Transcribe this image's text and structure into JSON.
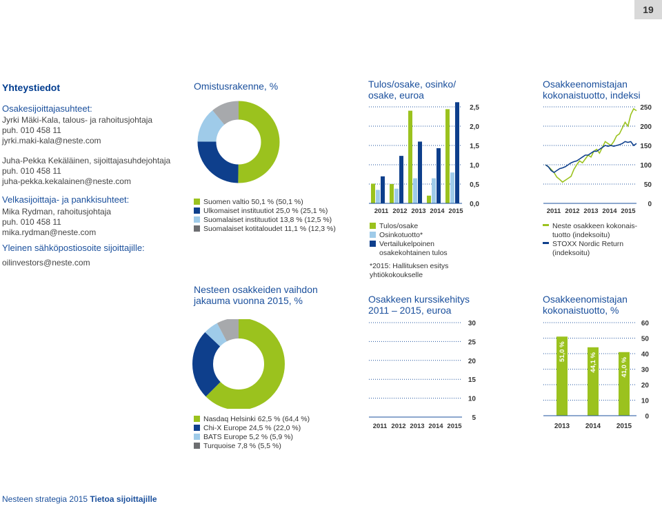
{
  "page_number": "19",
  "footer": {
    "left": "Nesteen strategia 2015",
    "right": "Tietoa sijoittajille"
  },
  "colors": {
    "green": "#9bc21e",
    "navy": "#0e3f8c",
    "lightblue": "#9fcbe9",
    "gray": "#a7a9ac",
    "text_blue": "#1a4f9c"
  },
  "contacts": {
    "title": "Yhteystiedot",
    "shareholder_heading": "Osakesijoittajasuhteet:",
    "shareholder_lines": [
      "Jyrki Mäki-Kala, talous- ja rahoitusjohtaja",
      "puh. 010 458 11",
      "jyrki.maki-kala@neste.com"
    ],
    "relations_lines": [
      "Juha-Pekka Kekäläinen, sijoittajasuhdejohtaja",
      "puh. 010 458 11",
      "juha-pekka.kekalainen@neste.com"
    ],
    "debt_heading": "Velkasijoittaja- ja pankkisuhteet:",
    "debt_lines": [
      "Mika Rydman, rahoitusjohtaja",
      "puh. 010 458 11",
      "mika.rydman@neste.com"
    ],
    "general_heading": "Yleinen sähköpostiosoite sijoittajille:",
    "general_email": "oilinvestors@neste.com"
  },
  "ownership": {
    "title": "Omistusrakenne, %",
    "legend": [
      "Suomen valtio 50,1 % (50,1 %)",
      "Ulkomaiset instituutiot 25,0 % (25,1 %)",
      "Suomalaiset instituutiot 13,8 % (12,5 %)",
      "Suomalaiset kotitaloudet 11,1 % (12,3 %)"
    ]
  },
  "trading": {
    "title_lines": [
      "Nesteen osakkeiden vaihdon",
      "jakauma vuonna 2015, %"
    ],
    "legend": [
      "Nasdaq Helsinki 62,5 % (64,4 %)",
      "Chi-X Europe 24,5 % (22,0 %)",
      "BATS Europe 5,2 % (5,9 %)",
      "Turquoise 7,8 % (5,5 %)"
    ]
  },
  "eps": {
    "title_lines": [
      "Tulos/osake, osinko/",
      "osake, euroa"
    ],
    "legend": [
      "Tulos/osake",
      "Osinkotuotto*",
      "Vertailukelpoinen",
      "osakekohtainen tulos"
    ],
    "note_lines": [
      "*2015: Hallituksen esitys",
      "yhtiökokoukselle"
    ]
  },
  "tsr_index": {
    "title_lines": [
      "Osakkeenomistajan",
      "kokonaistuotto, indeksi"
    ],
    "legend": [
      "Neste osakkeen kokonais-",
      "tuotto (indeksoitu)",
      "STOXX Nordic Return",
      "(indeksoitu)"
    ]
  },
  "price": {
    "title_lines": [
      "Osakkeen kurssikehitys",
      "2011 – 2015, euroa"
    ]
  },
  "tsr_pct": {
    "title_lines": [
      "Osakkeenomistajan",
      "kokonaistuotto, %"
    ]
  },
  "chart_data": [
    {
      "id": "ownership",
      "type": "pie",
      "title": "Omistusrakenne, %",
      "categories": [
        "Suomen valtio",
        "Ulkomaiset instituutiot",
        "Suomalaiset instituutiot",
        "Suomalaiset kotitaloudet"
      ],
      "values": [
        50.1,
        25.0,
        13.8,
        11.1
      ]
    },
    {
      "id": "trading",
      "type": "pie",
      "title": "Nesteen osakkeiden vaihdon jakauma vuonna 2015, %",
      "categories": [
        "Nasdaq Helsinki",
        "Chi-X Europe",
        "BATS Europe",
        "Turquoise"
      ],
      "values": [
        62.5,
        24.5,
        5.2,
        7.8
      ]
    },
    {
      "id": "eps",
      "type": "bar",
      "title": "Tulos/osake, osinko/osake, euroa",
      "categories": [
        "2011",
        "2012",
        "2013",
        "2014",
        "2015"
      ],
      "series": [
        {
          "name": "Tulos/osake",
          "values": [
            0.51,
            0.5,
            2.4,
            0.2,
            2.44
          ]
        },
        {
          "name": "Osinkotuotto*",
          "values": [
            0.35,
            0.38,
            0.65,
            0.65,
            0.8
          ]
        },
        {
          "name": "Vertailukelpoinen osakekohtainen tulos",
          "values": [
            0.7,
            1.23,
            1.6,
            1.43,
            2.62
          ]
        }
      ],
      "yticks": [
        "0,0",
        "0,5",
        "1,0",
        "1,5",
        "2,0",
        "2,5"
      ],
      "ylim": [
        0,
        2.5
      ]
    },
    {
      "id": "tsr_index",
      "type": "line",
      "title": "Osakkeenomistajan kokonaistuotto, indeksi",
      "xticks": [
        "2011",
        "2012",
        "2013",
        "2014",
        "2015"
      ],
      "yticks": [
        "0",
        "50",
        "100",
        "150",
        "200",
        "250"
      ],
      "ylim": [
        0,
        250
      ],
      "series": [
        {
          "name": "Neste osakkeen kokonaistuotto (indeksoitu)",
          "values": [
            100,
            95,
            88,
            80,
            68,
            62,
            55,
            60,
            65,
            70,
            88,
            100,
            110,
            105,
            115,
            125,
            120,
            135,
            140,
            130,
            145,
            160,
            155,
            150,
            160,
            175,
            180,
            195,
            210,
            200,
            230,
            245,
            240
          ]
        },
        {
          "name": "STOXX Nordic Return (indeksoitu)",
          "values": [
            100,
            95,
            85,
            80,
            85,
            90,
            92,
            95,
            100,
            105,
            108,
            110,
            115,
            120,
            125,
            125,
            130,
            135,
            135,
            140,
            145,
            150,
            148,
            150,
            148,
            150,
            152,
            155,
            160,
            158,
            160,
            150,
            155
          ]
        }
      ]
    },
    {
      "id": "price",
      "type": "line",
      "title": "Osakkeen kurssikehitys 2011 – 2015, euroa",
      "xticks": [
        "2011",
        "2012",
        "2013",
        "2014",
        "2015"
      ],
      "yticks": [
        "5",
        "10",
        "15",
        "20",
        "25",
        "30"
      ],
      "ylim": [
        5,
        30
      ],
      "series": []
    },
    {
      "id": "tsr_pct",
      "type": "bar",
      "title": "Osakkeenomistajan kokonaistuotto, %",
      "categories": [
        "2013",
        "2014",
        "2015"
      ],
      "values": [
        51.0,
        44.1,
        41.0
      ],
      "labels": [
        "51,0 %",
        "44,1 %",
        "41,0 %"
      ],
      "yticks": [
        "0",
        "10",
        "20",
        "30",
        "40",
        "50",
        "60"
      ],
      "ylim": [
        0,
        60
      ]
    }
  ]
}
